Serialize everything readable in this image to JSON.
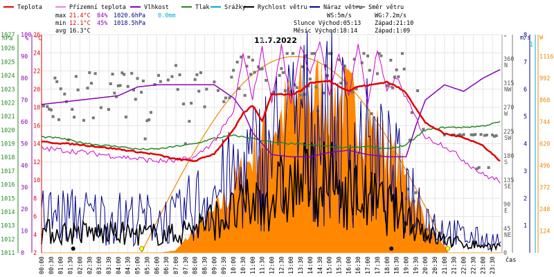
{
  "chart_data": {
    "type": "line",
    "title": "11.7.2022",
    "xlabel": "čas",
    "legend": [
      {
        "label": "Teplota",
        "color": "#e00000"
      },
      {
        "label": "Přízemní teplota",
        "color": "#cc00cc"
      },
      {
        "label": "Vlhkost",
        "color": "#8800bb"
      },
      {
        "label": "Tlak",
        "color": "#228822"
      },
      {
        "label": "Srážky",
        "color": "#00aacc"
      },
      {
        "label": "Rychlost větru",
        "color": "#000000"
      },
      {
        "label": "Náraz větru",
        "color": "#000088"
      },
      {
        "label": "Směr větru",
        "color": "#777777"
      }
    ],
    "stats": {
      "max": {
        "label": "max",
        "temp": "21.4°C",
        "hum": "84%",
        "press": "1020.6hPa",
        "rain": "0.0mm"
      },
      "min": {
        "label": "min",
        "temp": "12.1°C",
        "hum": "45%",
        "press": "1018.5hPa"
      },
      "avg": {
        "label": "avg",
        "temp": "16.3°C"
      }
    },
    "info": {
      "ws": "WS:5m/s",
      "wg": "WG:7.2m/s",
      "sun": "Slunce Východ:05:13",
      "sun_set": "Západ:21:10",
      "moon": "Měsíc  Východ:18:14",
      "moon_set": "Západ:1:09"
    },
    "axes": {
      "hpa": {
        "unit": "hPa",
        "ticks": [
          "1027",
          "1026",
          "1025",
          "1024",
          "1023",
          "1022",
          "1021",
          "1020",
          "1019",
          "1018",
          "1017",
          "1016",
          "1015",
          "1014",
          "1013",
          "1012",
          "1011"
        ]
      },
      "pct": {
        "unit": "%",
        "ticks": [
          "100",
          "90",
          "80",
          "70",
          "60",
          "50",
          "40",
          "30",
          "20",
          "10",
          "0"
        ]
      },
      "temp": {
        "unit": "°C",
        "ticks": [
          "26",
          "24",
          "22",
          "20",
          "18",
          "16",
          "14",
          "12",
          "10",
          "8",
          "6",
          "4",
          "2"
        ]
      },
      "dir": {
        "unit": "°",
        "ticks": [
          {
            "deg": "360",
            "name": "N"
          },
          {
            "deg": "315",
            "name": "NW"
          },
          {
            "deg": "270",
            "name": "W"
          },
          {
            "deg": "225",
            "name": "SW"
          },
          {
            "deg": "180",
            "name": "S"
          },
          {
            "deg": "135",
            "name": "SE"
          },
          {
            "deg": "90",
            "name": "E"
          },
          {
            "deg": "45",
            "name": "NE"
          },
          {
            "deg": "0",
            "name": ""
          }
        ]
      },
      "ms": {
        "unit": "m/s",
        "ticks": [
          "8",
          "7",
          "6",
          "5",
          "4",
          "3",
          "2",
          "1"
        ]
      },
      "mm": {
        "unit": "mm",
        "ticks": [
          "1"
        ]
      },
      "wm2": {
        "unit": "W",
        "ticks": [
          "1116",
          "992",
          "868",
          "744",
          "620",
          "496",
          "372",
          "248",
          "124"
        ]
      }
    },
    "x_ticks": [
      "00:00",
      "00:30",
      "01:00",
      "01:30",
      "02:00",
      "02:30",
      "03:00",
      "03:30",
      "04:00",
      "04:30",
      "05:00",
      "05:30",
      "06:00",
      "06:30",
      "07:00",
      "07:30",
      "08:00",
      "08:30",
      "09:00",
      "09:30",
      "10:00",
      "10:30",
      "11:00",
      "11:30",
      "12:00",
      "12:30",
      "13:00",
      "13:30",
      "14:00",
      "14:30",
      "15:00",
      "15:30",
      "16:00",
      "16:30",
      "17:00",
      "17:30",
      "18:00",
      "18:30",
      "19:00",
      "19:30",
      "20:00",
      "20:30",
      "21:00",
      "21:30",
      "22:00",
      "22:30",
      "23:00",
      "23:30"
    ],
    "series": {
      "teplota": {
        "t": [
          0,
          2,
          4,
          6,
          7,
          8,
          9,
          10,
          10.5,
          11,
          11.5,
          12,
          13,
          13.5,
          14,
          15,
          16,
          16.5,
          17,
          18,
          18.5,
          19,
          20,
          20.5,
          21,
          22,
          23,
          23.9
        ],
        "v": [
          14.2,
          13.9,
          13.4,
          12.8,
          12.3,
          12.1,
          12.9,
          15.5,
          17.3,
          18.2,
          16.5,
          19.5,
          19.4,
          19.8,
          20.7,
          20.9,
          19.8,
          20.3,
          20.4,
          20.8,
          20.3,
          19.6,
          16.3,
          15.7,
          15.1,
          14.7,
          13.8,
          12.1
        ]
      },
      "prizemni": {
        "t": [
          0,
          2,
          4,
          6,
          7,
          8,
          9,
          10,
          10.5,
          11,
          11.5,
          12,
          12.5,
          13,
          13.5,
          14,
          14.5,
          15,
          15.5,
          16,
          16.5,
          17,
          17.5,
          18,
          18.5,
          19,
          20,
          21,
          22,
          23,
          23.9
        ],
        "v": [
          13.5,
          13.1,
          12.6,
          12.1,
          12.1,
          12.5,
          14.3,
          17.4,
          23.8,
          19,
          24.5,
          18.6,
          24.8,
          18.2,
          24.9,
          21.8,
          25.2,
          19.4,
          24.1,
          19.3,
          25,
          18.4,
          24.3,
          19.7,
          21.3,
          19,
          14.7,
          13.8,
          12.2,
          10.6,
          9.9
        ]
      },
      "vlhkost": {
        "t": [
          0,
          2,
          4,
          5,
          6,
          7,
          8,
          9,
          10,
          10.5,
          11,
          12,
          13,
          14,
          15,
          16,
          17,
          18,
          19,
          19.5,
          20,
          21,
          22,
          23,
          23.9
        ],
        "v": [
          68,
          70,
          72,
          76,
          77,
          77,
          77,
          77,
          71,
          65,
          55,
          45,
          44,
          44,
          46,
          47,
          45,
          44,
          44,
          58,
          70,
          77,
          74,
          80,
          84
        ]
      },
      "tlak": {
        "t": [
          0,
          1,
          2,
          3,
          4,
          5,
          6,
          7,
          8,
          9,
          10,
          11,
          12,
          13,
          14,
          15,
          16,
          17,
          18,
          19,
          20,
          21,
          22,
          23,
          23.9
        ],
        "v": [
          1019.5,
          1019.4,
          1019.1,
          1018.9,
          1018.8,
          1018.6,
          1018.6,
          1018.8,
          1019.0,
          1019.4,
          1019.6,
          1019.4,
          1019.1,
          1019.0,
          1018.9,
          1018.8,
          1018.7,
          1018.8,
          1018.6,
          1018.9,
          1020.0,
          1020.2,
          1020.2,
          1020.3,
          1020.6
        ]
      },
      "solar": {
        "t": [
          0,
          5,
          6.2,
          7,
          8,
          9,
          10,
          11,
          12,
          13,
          14,
          14.5,
          15,
          16,
          17,
          18,
          19,
          19.5,
          20,
          20.5,
          21.2,
          24
        ],
        "v": [
          0,
          0,
          0,
          15,
          160,
          280,
          455,
          690,
          880,
          1015,
          1100,
          1116,
          1106,
          1045,
          910,
          720,
          505,
          365,
          230,
          110,
          0,
          0
        ]
      }
    },
    "xlim": [
      0,
      24
    ],
    "ylim_temp": [
      2,
      26
    ],
    "ylim_pct": [
      0,
      100
    ],
    "ylim_hpa": [
      1011,
      1027
    ],
    "ylim_ms": [
      0,
      8
    ],
    "ylim_wm2": [
      0,
      1240
    ]
  }
}
